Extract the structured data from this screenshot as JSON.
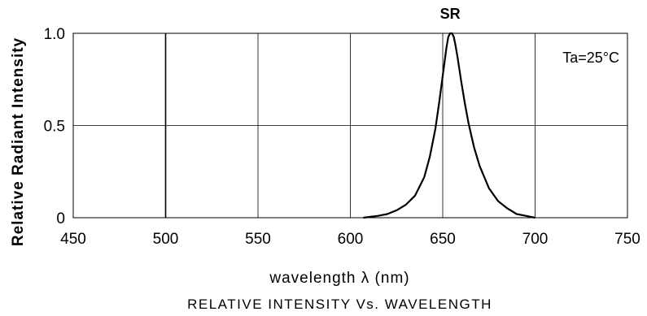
{
  "chart_data": {
    "type": "line",
    "title": "RELATIVE INTENSITY Vs. WAVELENGTH",
    "xlabel": "wavelength λ (nm)",
    "ylabel": "Relative Radiant Intensity",
    "xlim": [
      450,
      750
    ],
    "ylim": [
      0,
      1.0
    ],
    "x_ticks": [
      "450",
      "500",
      "550",
      "600",
      "650",
      "700",
      "750"
    ],
    "y_ticks": [
      "0",
      "0.5",
      "1.0"
    ],
    "grid": true,
    "annotation": "Ta=25°C",
    "series": [
      {
        "name": "SR",
        "x": [
          607,
          615,
          620,
          625,
          630,
          635,
          640,
          643,
          646,
          648,
          650,
          652,
          653,
          654,
          655,
          656,
          657,
          658,
          660,
          662,
          664,
          667,
          670,
          675,
          680,
          685,
          690,
          695,
          700
        ],
        "y": [
          0.0,
          0.01,
          0.02,
          0.04,
          0.07,
          0.12,
          0.22,
          0.33,
          0.48,
          0.62,
          0.77,
          0.92,
          0.98,
          1.0,
          1.0,
          0.98,
          0.93,
          0.87,
          0.74,
          0.62,
          0.51,
          0.38,
          0.28,
          0.16,
          0.09,
          0.05,
          0.02,
          0.01,
          0.0
        ]
      }
    ],
    "colors": {
      "line": "#000000",
      "grid": "#000000"
    }
  }
}
